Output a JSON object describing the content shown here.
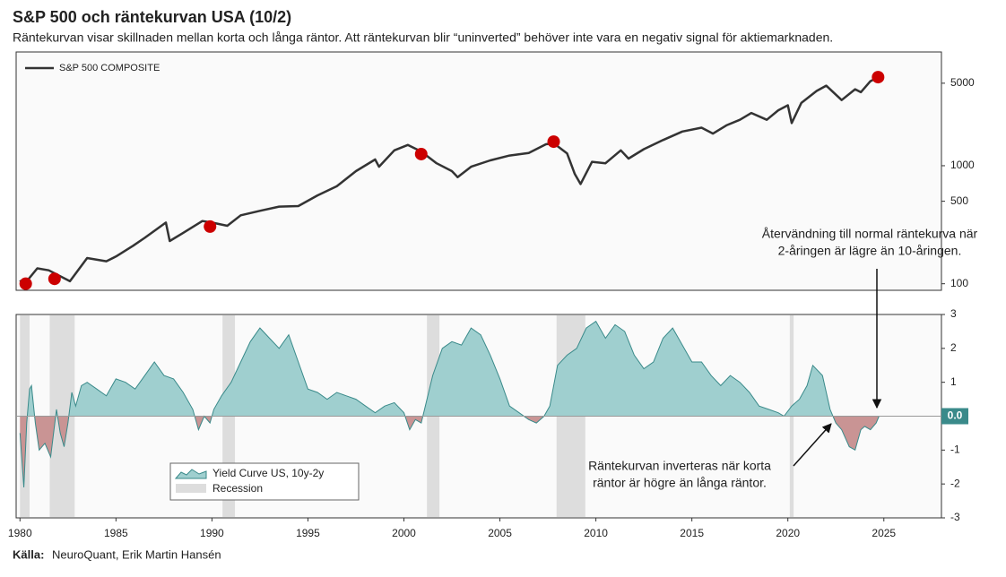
{
  "title": "S&P 500 och räntekurvan USA (10/2)",
  "subtitle": "Räntekurvan visar skillnaden mellan korta och långa räntor. Att räntekurvan blir “uninverted” behöver inte vara en negativ signal för aktiemarknaden.",
  "source_label": "Källa:",
  "source": "NeuroQuant, Erik Martin Hansén",
  "chart_data": [
    {
      "type": "line",
      "log_y": true,
      "xlim": [
        1979.8,
        2028
      ],
      "ylim": [
        88,
        9200
      ],
      "yticks": [
        100,
        500,
        1000,
        5000
      ],
      "x": [
        1980.0,
        1980.2,
        1980.9,
        1981.5,
        1982.6,
        1983.5,
        1984.5,
        1985.0,
        1985.9,
        1986.5,
        1987.6,
        1987.8,
        1988.5,
        1989.5,
        1990.0,
        1990.8,
        1991.5,
        1992.5,
        1993.5,
        1994.5,
        1995.5,
        1996.5,
        1997.5,
        1998.5,
        1998.7,
        1999.5,
        2000.2,
        2000.9,
        2001.7,
        2002.5,
        2002.8,
        2003.5,
        2004.5,
        2005.5,
        2006.5,
        2007.4,
        2007.8,
        2008.5,
        2008.9,
        2009.2,
        2009.8,
        2010.5,
        2011.3,
        2011.7,
        2012.5,
        2013.5,
        2014.5,
        2015.5,
        2016.1,
        2016.8,
        2017.5,
        2018.1,
        2018.9,
        2019.5,
        2020.0,
        2020.2,
        2020.7,
        2021.5,
        2022.0,
        2022.8,
        2023.5,
        2023.8,
        2024.3,
        2024.6
      ],
      "series": [
        {
          "name": "S&P 500 COMPOSITE",
          "color": "#333333",
          "values": [
            107,
            98,
            135,
            130,
            105,
            165,
            155,
            170,
            210,
            245,
            330,
            230,
            270,
            340,
            330,
            310,
            380,
            415,
            450,
            455,
            560,
            670,
            900,
            1130,
            980,
            1350,
            1500,
            1320,
            1050,
            900,
            800,
            980,
            1110,
            1220,
            1280,
            1520,
            1550,
            1270,
            850,
            700,
            1080,
            1050,
            1350,
            1150,
            1380,
            1650,
            1950,
            2100,
            1870,
            2200,
            2450,
            2800,
            2450,
            2950,
            3250,
            2300,
            3400,
            4300,
            4770,
            3600,
            4450,
            4200,
            5200,
            5500
          ]
        }
      ],
      "markers": {
        "color": "#cc0000",
        "x": [
          1980.3,
          1981.8,
          1989.9,
          2000.9,
          2007.8,
          2024.7
        ],
        "values": [
          100,
          110,
          305,
          1255,
          1600,
          5630
        ]
      },
      "annotations": [
        {
          "lines": [
            "Återvändning till normal räntekurva när",
            "2-åringen är lägre än 10-åringen."
          ]
        }
      ]
    },
    {
      "type": "area",
      "xlim": [
        1979.8,
        2028
      ],
      "ylim": [
        -3,
        3
      ],
      "xticks": [
        1980,
        1985,
        1990,
        1995,
        2000,
        2005,
        2010,
        2015,
        2020,
        2025
      ],
      "yticks": [
        -3,
        -2,
        -1,
        0,
        1,
        2,
        3
      ],
      "x": [
        1980.0,
        1980.2,
        1980.35,
        1980.5,
        1980.6,
        1980.8,
        1981.0,
        1981.3,
        1981.6,
        1981.9,
        1982.1,
        1982.3,
        1982.5,
        1982.7,
        1982.9,
        1983.2,
        1983.5,
        1984.0,
        1984.5,
        1985.0,
        1985.5,
        1986.0,
        1986.5,
        1987.0,
        1987.5,
        1988.0,
        1988.5,
        1989.0,
        1989.3,
        1989.6,
        1989.9,
        1990.1,
        1990.5,
        1991.0,
        1991.5,
        1992.0,
        1992.5,
        1993.0,
        1993.5,
        1994.0,
        1994.5,
        1995.0,
        1995.5,
        1996.0,
        1996.5,
        1997.0,
        1997.5,
        1998.0,
        1998.5,
        1999.0,
        1999.5,
        2000.0,
        2000.3,
        2000.6,
        2000.9,
        2001.2,
        2001.5,
        2002.0,
        2002.5,
        2003.0,
        2003.5,
        2004.0,
        2004.5,
        2005.0,
        2005.5,
        2006.0,
        2006.5,
        2006.9,
        2007.3,
        2007.6,
        2008.0,
        2008.5,
        2009.0,
        2009.5,
        2010.0,
        2010.5,
        2011.0,
        2011.5,
        2012.0,
        2012.5,
        2013.0,
        2013.5,
        2014.0,
        2014.5,
        2015.0,
        2015.5,
        2016.0,
        2016.5,
        2017.0,
        2017.5,
        2018.0,
        2018.5,
        2019.0,
        2019.5,
        2019.8,
        2020.2,
        2020.6,
        2021.0,
        2021.3,
        2021.8,
        2022.2,
        2022.5,
        2022.8,
        2023.2,
        2023.5,
        2023.8,
        2024.0,
        2024.3,
        2024.6,
        2024.75
      ],
      "series": [
        {
          "name": "Yield Curve US, 10y-2y",
          "color": "#3a8a8a",
          "fill": "#9fcfcf",
          "negative_fill": "#c99494",
          "values": [
            -0.5,
            -2.1,
            -0.2,
            0.8,
            0.9,
            -0.2,
            -1.0,
            -0.8,
            -1.2,
            0.2,
            -0.5,
            -0.9,
            -0.2,
            0.7,
            0.3,
            0.9,
            1.0,
            0.8,
            0.6,
            1.1,
            1.0,
            0.8,
            1.2,
            1.6,
            1.2,
            1.1,
            0.7,
            0.2,
            -0.4,
            0.0,
            -0.2,
            0.2,
            0.6,
            1.0,
            1.6,
            2.2,
            2.6,
            2.3,
            2.0,
            2.4,
            1.6,
            0.8,
            0.7,
            0.5,
            0.7,
            0.6,
            0.5,
            0.3,
            0.1,
            0.3,
            0.4,
            0.1,
            -0.4,
            -0.1,
            -0.2,
            0.5,
            1.2,
            2.0,
            2.2,
            2.1,
            2.6,
            2.4,
            1.8,
            1.1,
            0.3,
            0.1,
            -0.1,
            -0.2,
            0.0,
            0.3,
            1.5,
            1.8,
            2.0,
            2.6,
            2.8,
            2.3,
            2.7,
            2.5,
            1.8,
            1.4,
            1.6,
            2.3,
            2.6,
            2.1,
            1.6,
            1.6,
            1.2,
            0.9,
            1.2,
            1.0,
            0.7,
            0.3,
            0.2,
            0.1,
            0.0,
            0.3,
            0.5,
            0.9,
            1.5,
            1.2,
            0.2,
            -0.2,
            -0.4,
            -0.9,
            -1.0,
            -0.4,
            -0.3,
            -0.4,
            -0.2,
            0.0
          ]
        }
      ],
      "recession_name": "Recession",
      "recession_color": "#dddddd",
      "recessions": [
        [
          1980.0,
          1980.5
        ],
        [
          1981.55,
          1982.85
        ],
        [
          1990.55,
          1991.2
        ],
        [
          2001.2,
          2001.85
        ],
        [
          2007.95,
          2009.45
        ],
        [
          2020.1,
          2020.3
        ]
      ],
      "current_value": {
        "value": 0,
        "label": "0.0"
      },
      "annotations": [
        {
          "lines": [
            "Räntekurvan inverteras när korta",
            "räntor är högre än långa räntor."
          ]
        }
      ]
    }
  ]
}
